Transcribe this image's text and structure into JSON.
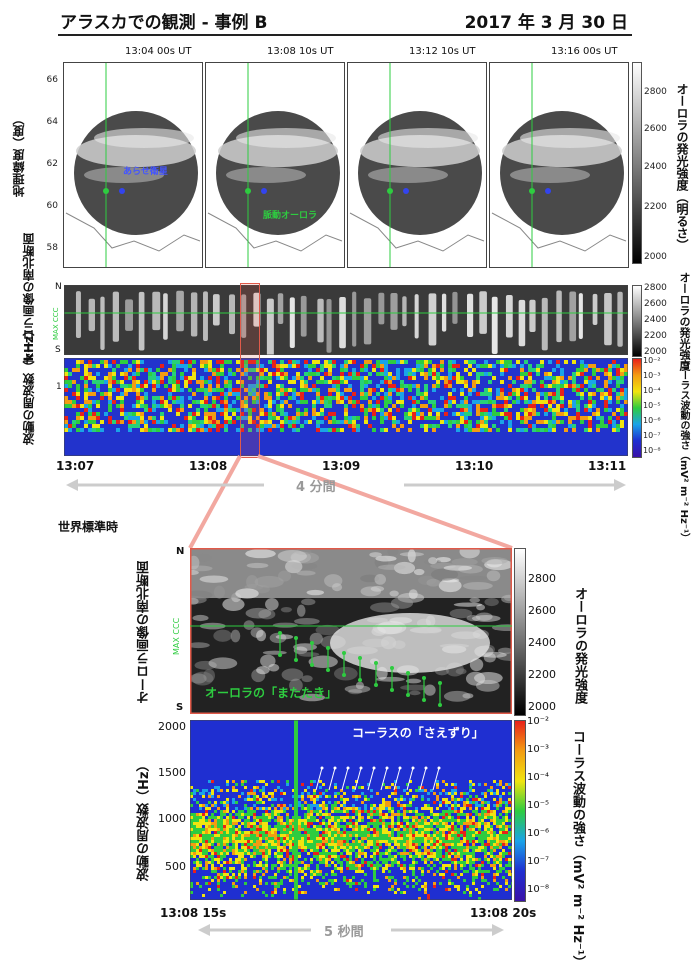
{
  "header": {
    "title": "アラスカでの観測 - 事例 B",
    "date": "2017 年 3 月 30 日"
  },
  "images": {
    "ylabel": "地理緯度（度）",
    "yticks": [
      "66",
      "64",
      "62",
      "60",
      "58"
    ],
    "times": [
      "13:04 00s UT",
      "13:08 10s UT",
      "13:12 10s UT",
      "13:16 00s UT"
    ],
    "annot_satellite": "あらせ衛星",
    "annot_pulsating": "脈動オーロラ",
    "colorbar_label": "オーロラの発光強度（明るさ）",
    "colorbar_ticks": [
      "2800",
      "2600",
      "2400",
      "2200",
      "2000"
    ]
  },
  "keogram": {
    "ylabel": "オーロラ画像の南北断面",
    "n": "N",
    "s": "S",
    "max_ccc": "MAX CCC",
    "colorbar_label": "オーロラの発光強度",
    "colorbar_ticks": [
      "2800",
      "2600",
      "2400",
      "2200",
      "2000"
    ]
  },
  "spectro": {
    "ylabel": "波動の周波数（kHz）",
    "ytick": "1",
    "colorbar_label": "コーラス波動の強さ（mV² m⁻² Hz⁻¹）",
    "colorbar_ticks": [
      "10⁻²",
      "10⁻³",
      "10⁻⁴",
      "10⁻⁵",
      "10⁻⁶",
      "10⁻⁷",
      "10⁻⁸"
    ]
  },
  "time_axis": {
    "ticks": [
      "13:07",
      "13:08",
      "13:09",
      "13:10",
      "13:11"
    ],
    "span": "4 分間",
    "label": "世界標準時"
  },
  "zoom_keogram": {
    "ylabel": "オーロラ画像の南北断面",
    "n": "N",
    "s": "S",
    "max_ccc": "MAX CCC",
    "annotation": "オーロラの「またたき」",
    "colorbar_label": "オーロラの発光強度",
    "colorbar_ticks": [
      "2800",
      "2600",
      "2400",
      "2200",
      "2000"
    ]
  },
  "zoom_spectro": {
    "ylabel": "波動の周波数（Hz）",
    "yticks": [
      "2000",
      "1500",
      "1000",
      "500"
    ],
    "annotation": "コーラスの「さえずり」",
    "colorbar_label": "コーラス波動の強さ（mV² m⁻² Hz⁻¹）",
    "colorbar_ticks": [
      "10⁻²",
      "10⁻³",
      "10⁻⁴",
      "10⁻⁵",
      "10⁻⁶",
      "10⁻⁷",
      "10⁻⁸"
    ]
  },
  "zoom_time": {
    "start": "13:08 15s",
    "end": "13:08 20s",
    "span": "5 秒間"
  },
  "chart_data": {
    "type": "heatmap",
    "title": "アラスカでの観測 - 事例 B",
    "time_range_overview": [
      "13:07",
      "13:11"
    ],
    "time_range_zoom": [
      "13:08 15s",
      "13:08 20s"
    ],
    "keogram_intensity_range": [
      2000,
      2800
    ],
    "chorus_power_range": [
      "10⁻⁸",
      "10⁻²"
    ],
    "zoom_frequency_range_hz": [
      200,
      2000
    ],
    "latitude_ticks": [
      66,
      64,
      62,
      60,
      58
    ]
  }
}
